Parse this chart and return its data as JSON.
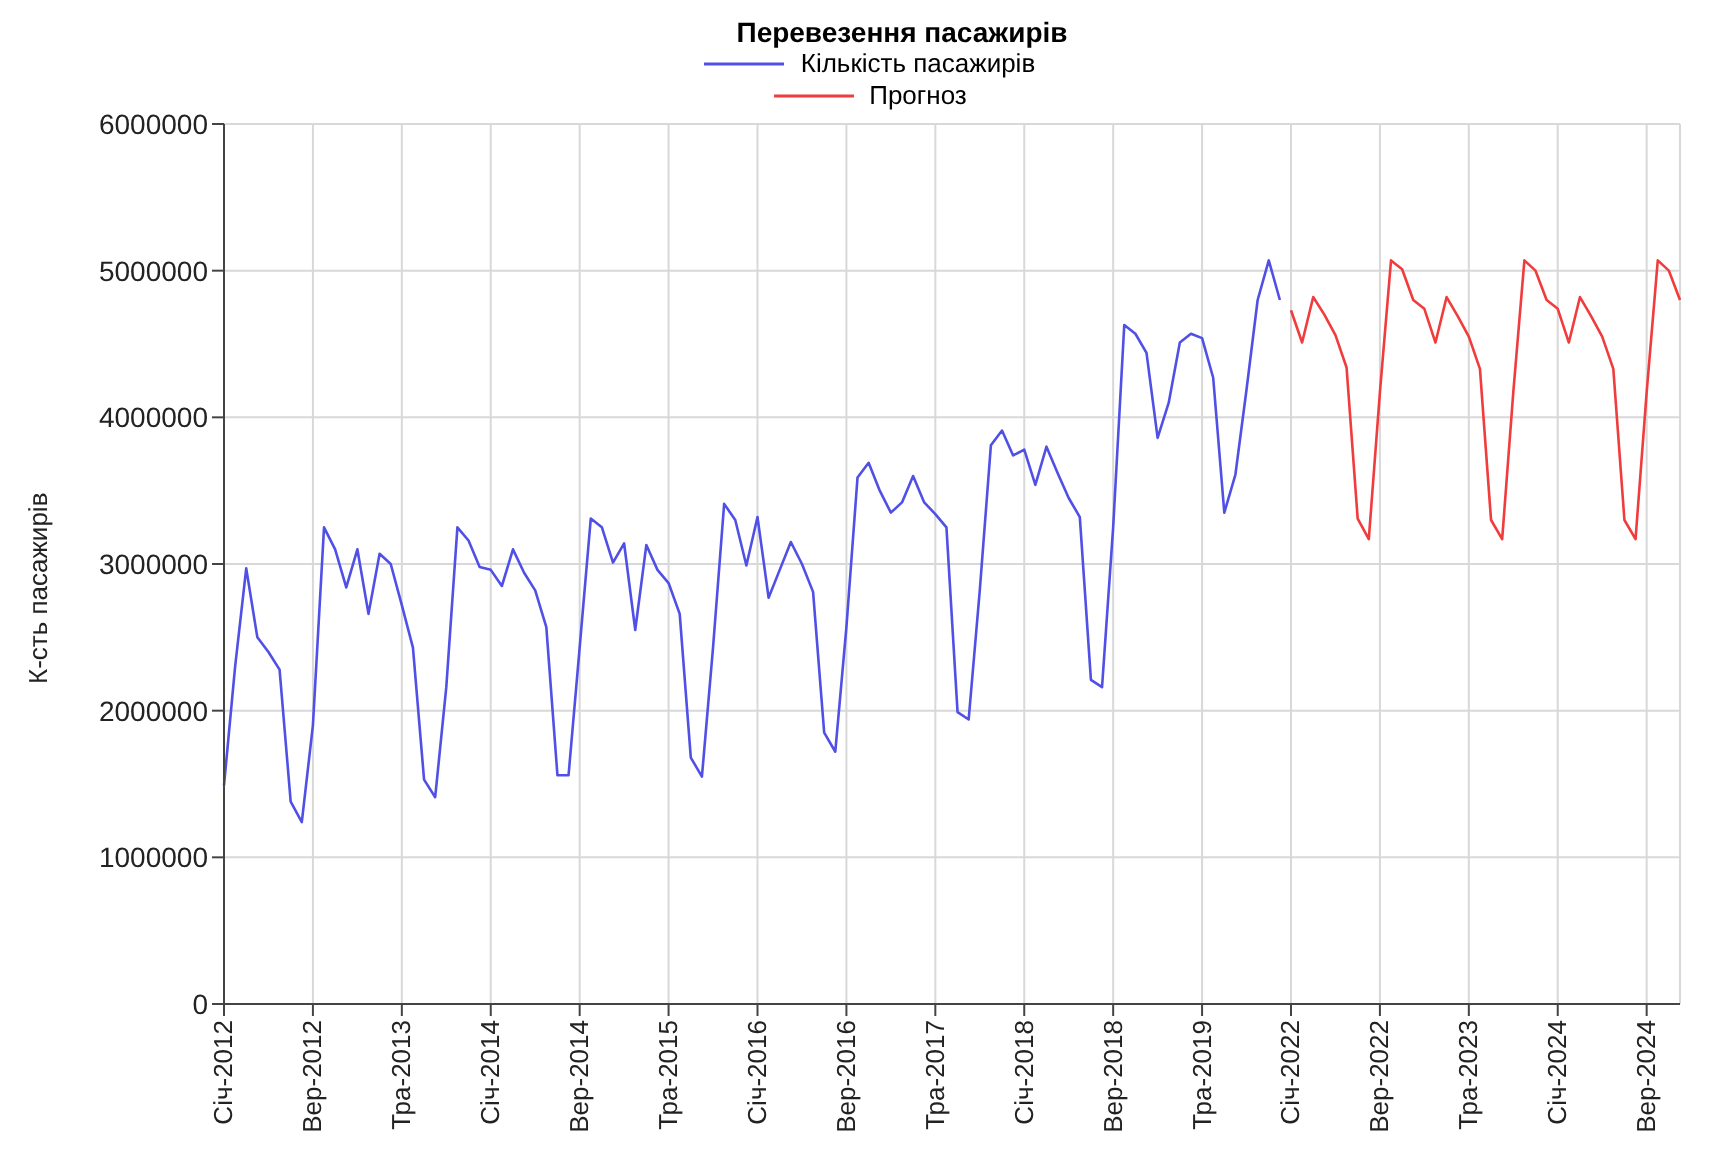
{
  "chart_data": {
    "type": "line",
    "title": "Перевезення пасажирів",
    "ylabel": "К-сть пасажирів",
    "categories": [
      "Січ-2012",
      null,
      null,
      null,
      null,
      null,
      null,
      null,
      "Вер-2012",
      null,
      null,
      null,
      null,
      null,
      null,
      null,
      "Тра-2013",
      null,
      null,
      null,
      null,
      null,
      null,
      null,
      "Січ-2014",
      null,
      null,
      null,
      null,
      null,
      null,
      null,
      "Вер-2014",
      null,
      null,
      null,
      null,
      null,
      null,
      null,
      "Тра-2015",
      null,
      null,
      null,
      null,
      null,
      null,
      null,
      "Січ-2016",
      null,
      null,
      null,
      null,
      null,
      null,
      null,
      "Вер-2016",
      null,
      null,
      null,
      null,
      null,
      null,
      null,
      "Тра-2017",
      null,
      null,
      null,
      null,
      null,
      null,
      null,
      "Січ-2018",
      null,
      null,
      null,
      null,
      null,
      null,
      null,
      "Вер-2018",
      null,
      null,
      null,
      null,
      null,
      null,
      null,
      "Тра-2019",
      null,
      null,
      null,
      null,
      null,
      null,
      null,
      "Січ-2022",
      null,
      null,
      null,
      null,
      null,
      null,
      null,
      "Вер-2022",
      null,
      null,
      null,
      null,
      null,
      null,
      null,
      "Тра-2023",
      null,
      null,
      null,
      null,
      null,
      null,
      null,
      "Січ-2024",
      null,
      null,
      null,
      null,
      null,
      null,
      null,
      "Вер-2024",
      null,
      null,
      null
    ],
    "series": [
      {
        "name": "Кількість пасажирів",
        "color": "#5050e6",
        "values": [
          1490000,
          2300000,
          2970000,
          2500000,
          2400000,
          2280000,
          1380000,
          1240000,
          1900000,
          3250000,
          3100000,
          2840000,
          3100000,
          2660000,
          3070000,
          3000000,
          2720000,
          2430000,
          1530000,
          1410000,
          2160000,
          3250000,
          3160000,
          2980000,
          2960000,
          2850000,
          3100000,
          2940000,
          2820000,
          2570000,
          1560000,
          1560000,
          2430000,
          3310000,
          3250000,
          3010000,
          3140000,
          2550000,
          3130000,
          2960000,
          2870000,
          2660000,
          1680000,
          1550000,
          2430000,
          3410000,
          3300000,
          2990000,
          3320000,
          2770000,
          2960000,
          3150000,
          3000000,
          2810000,
          1850000,
          1720000,
          2570000,
          3590000,
          3690000,
          3500000,
          3350000,
          3420000,
          3600000,
          3420000,
          3340000,
          3250000,
          1990000,
          1940000,
          2820000,
          3810000,
          3910000,
          3740000,
          3780000,
          3540000,
          3800000,
          3620000,
          3450000,
          3320000,
          2210000,
          2160000,
          3250000,
          4630000,
          4570000,
          4440000,
          3860000,
          4100000,
          4510000,
          4570000,
          4540000,
          4270000,
          3350000,
          3610000,
          4190000,
          4800000,
          5070000,
          4800000,
          null,
          null,
          null,
          null,
          null,
          null,
          null,
          null,
          null,
          null,
          null,
          null,
          null,
          null,
          null,
          null,
          null,
          null,
          null,
          null,
          null,
          null,
          null,
          null,
          null,
          null,
          null,
          null,
          null,
          null,
          null,
          null,
          null,
          null,
          null,
          null
        ]
      },
      {
        "name": "Прогноз",
        "color": "#f03c3c",
        "values": [
          null,
          null,
          null,
          null,
          null,
          null,
          null,
          null,
          null,
          null,
          null,
          null,
          null,
          null,
          null,
          null,
          null,
          null,
          null,
          null,
          null,
          null,
          null,
          null,
          null,
          null,
          null,
          null,
          null,
          null,
          null,
          null,
          null,
          null,
          null,
          null,
          null,
          null,
          null,
          null,
          null,
          null,
          null,
          null,
          null,
          null,
          null,
          null,
          null,
          null,
          null,
          null,
          null,
          null,
          null,
          null,
          null,
          null,
          null,
          null,
          null,
          null,
          null,
          null,
          null,
          null,
          null,
          null,
          null,
          null,
          null,
          null,
          null,
          null,
          null,
          null,
          null,
          null,
          null,
          null,
          null,
          null,
          null,
          null,
          null,
          null,
          null,
          null,
          null,
          null,
          null,
          null,
          null,
          null,
          null,
          null,
          4730000,
          4510000,
          4820000,
          4700000,
          4560000,
          4340000,
          3310000,
          3170000,
          4170000,
          5070000,
          5010000,
          4800000,
          4740000,
          4510000,
          4820000,
          4690000,
          4550000,
          4330000,
          3300000,
          3170000,
          4170000,
          5070000,
          5000000,
          4800000,
          4740000,
          4510000,
          4820000,
          4690000,
          4550000,
          4330000,
          3300000,
          3170000,
          4170000,
          5070000,
          5000000,
          4800000
        ]
      }
    ],
    "ylim": [
      0,
      6000000
    ],
    "yticks": [
      0,
      1000000,
      2000000,
      3000000,
      4000000,
      5000000,
      6000000
    ],
    "grid": true,
    "legend": "top",
    "line_style": "solid",
    "marker": "none"
  }
}
